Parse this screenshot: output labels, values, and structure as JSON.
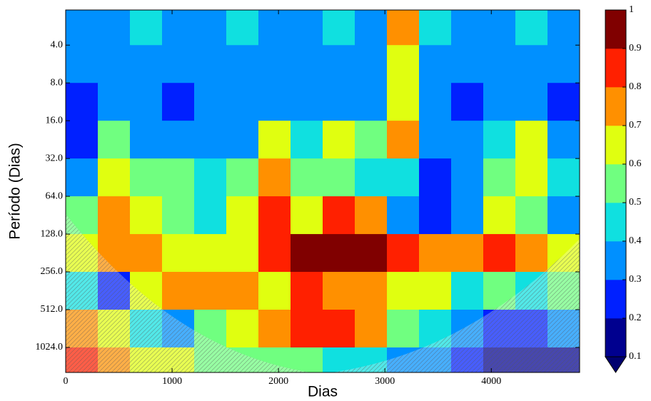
{
  "chart_data": {
    "type": "heatmap",
    "xlabel": "Dias",
    "ylabel": "Período (Dias)",
    "xlim": [
      0,
      4830
    ],
    "xticks": [
      0,
      1000,
      2000,
      3000,
      4000
    ],
    "ylim": [
      2.1,
      1620
    ],
    "y_log_base": 2,
    "y_inverted": true,
    "yticks": [
      {
        "value": 4,
        "label": "4.0"
      },
      {
        "value": 8,
        "label": "8.0"
      },
      {
        "value": 16,
        "label": "16.0"
      },
      {
        "value": 32,
        "label": "32.0"
      },
      {
        "value": 64,
        "label": "64.0"
      },
      {
        "value": 128,
        "label": "128.0"
      },
      {
        "value": 256,
        "label": "256.0"
      },
      {
        "value": 512,
        "label": "512.0"
      },
      {
        "value": 1024,
        "label": "1024.0"
      }
    ],
    "y_edges": [
      2.1,
      4,
      8,
      16,
      32,
      64,
      128,
      256,
      512,
      1024,
      1620
    ],
    "z": [
      [
        0.35,
        0.35,
        0.4,
        0.35,
        0.35,
        0.4,
        0.35,
        0.35,
        0.4,
        0.35,
        0.7,
        0.4,
        0.35,
        0.35,
        0.4,
        0.35
      ],
      [
        0.3,
        0.3,
        0.3,
        0.3,
        0.3,
        0.35,
        0.3,
        0.3,
        0.35,
        0.3,
        0.65,
        0.3,
        0.3,
        0.3,
        0.3,
        0.3
      ],
      [
        0.25,
        0.3,
        0.3,
        0.25,
        0.3,
        0.3,
        0.35,
        0.3,
        0.35,
        0.3,
        0.6,
        0.3,
        0.25,
        0.3,
        0.3,
        0.25
      ],
      [
        0.25,
        0.5,
        0.3,
        0.3,
        0.3,
        0.35,
        0.6,
        0.4,
        0.6,
        0.5,
        0.7,
        0.3,
        0.3,
        0.4,
        0.6,
        0.3
      ],
      [
        0.3,
        0.6,
        0.5,
        0.5,
        0.4,
        0.5,
        0.7,
        0.5,
        0.5,
        0.4,
        0.4,
        0.2,
        0.3,
        0.5,
        0.6,
        0.4
      ],
      [
        0.5,
        0.7,
        0.6,
        0.5,
        0.4,
        0.6,
        0.85,
        0.6,
        0.8,
        0.75,
        0.3,
        0.2,
        0.3,
        0.6,
        0.5,
        0.3
      ],
      [
        0.6,
        0.75,
        0.75,
        0.6,
        0.6,
        0.6,
        0.8,
        0.9,
        0.95,
        0.9,
        0.8,
        0.75,
        0.75,
        0.8,
        0.7,
        0.6
      ],
      [
        0.4,
        0.2,
        0.6,
        0.7,
        0.75,
        0.7,
        0.65,
        0.8,
        0.7,
        0.7,
        0.65,
        0.6,
        0.4,
        0.5,
        0.4,
        0.5
      ],
      [
        0.7,
        0.6,
        0.4,
        0.35,
        0.5,
        0.6,
        0.7,
        0.8,
        0.85,
        0.75,
        0.5,
        0.45,
        0.3,
        0.2,
        0.25,
        0.35
      ],
      [
        0.8,
        0.75,
        0.6,
        0.6,
        0.55,
        0.5,
        0.5,
        0.5,
        0.45,
        0.4,
        0.35,
        0.3,
        0.2,
        0.15,
        0.1,
        0.1
      ]
    ],
    "levels": [
      0.1,
      0.2,
      0.3,
      0.4,
      0.5,
      0.6,
      0.7,
      0.8,
      0.9,
      1
    ],
    "colors": [
      "#00008f",
      "#0020ff",
      "#0090ff",
      "#10e0e0",
      "#70ff80",
      "#e0ff10",
      "#ff9000",
      "#ff2000",
      "#800000"
    ],
    "under_color": "#000070"
  }
}
